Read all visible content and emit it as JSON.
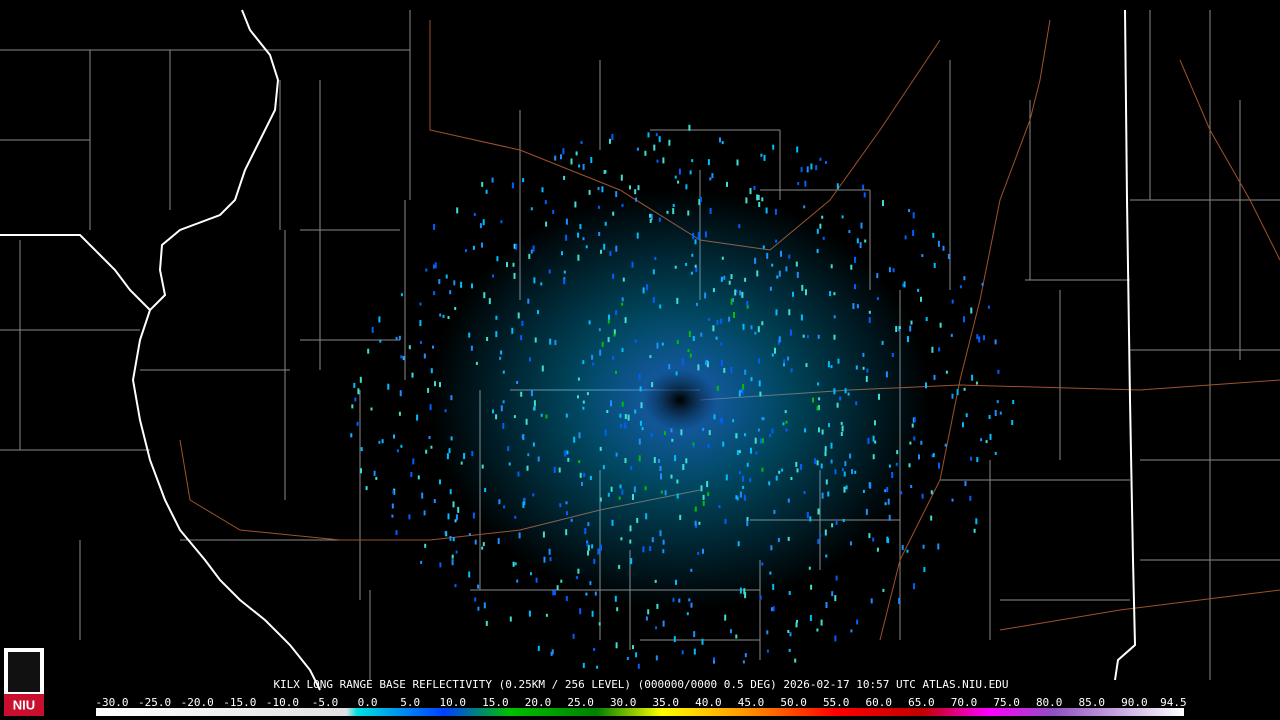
{
  "title": "KILX LONG RANGE BASE REFLECTIVITY (0.25KM / 256 LEVEL) (000000/0000 0.5 DEG) 2026-02-17 10:57 UTC  ATLAS.NIU.EDU",
  "logo": "NIU",
  "legend": {
    "labels": [
      "-30.0",
      "-25.0",
      "-20.0",
      "-15.0",
      "-10.0",
      "-5.0",
      "0.0",
      "5.0",
      "10.0",
      "15.0",
      "20.0",
      "25.0",
      "30.0",
      "35.0",
      "40.0",
      "45.0",
      "50.0",
      "55.0",
      "60.0",
      "65.0",
      "70.0",
      "75.0",
      "80.0",
      "85.0",
      "90.0",
      "94.5"
    ]
  }
}
